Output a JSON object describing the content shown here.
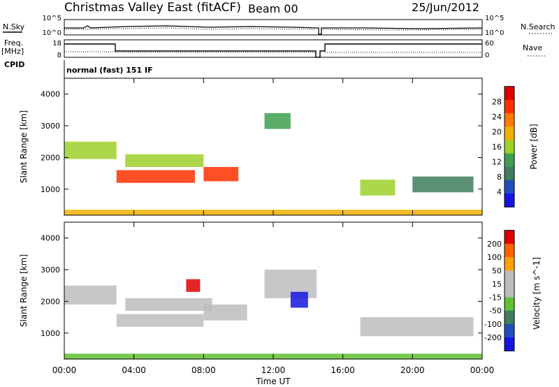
{
  "header": {
    "title": "Christmas Valley East (fitACF)",
    "beam": "Beam 00",
    "date": "25/Jun/2012"
  },
  "summary_panels": {
    "nsky_label": "N.Sky",
    "nsearch_label": "N.Search",
    "noise_ticks": [
      "10^5",
      "10^0"
    ],
    "freq_label": "Freq.",
    "freq_unit": "[MHz]",
    "freq_ticks": [
      "18",
      "8"
    ],
    "nave_label": "Nave",
    "nave_ticks": [
      "60",
      "0"
    ],
    "cpid_label": "CPID",
    "cpid_value": "normal (fast) 151 IF"
  },
  "colors": {
    "power_scale": [
      "#1515e0",
      "#1f4fbf",
      "#3f7d5c",
      "#3f9f4f",
      "#9fd02a",
      "#f2b000",
      "#ff7a00",
      "#ff3000",
      "#e00000"
    ],
    "velocity_scale": [
      "#1515e0",
      "#1f4fbf",
      "#3f7d5c",
      "#5fc030",
      "#bdbdbd",
      "#bdbdbd",
      "#ffa000",
      "#ff6000",
      "#e00000"
    ]
  },
  "chart_data": [
    {
      "type": "heatmap",
      "name": "power",
      "ylabel": "Slant Range [km]",
      "xlabel": "Time UT",
      "x_ticks": [
        "00:00",
        "04:00",
        "08:00",
        "12:00",
        "16:00",
        "20:00",
        "00:00"
      ],
      "y_ticks": [
        "1000",
        "2000",
        "3000",
        "4000"
      ],
      "xlim_hours": [
        0,
        24
      ],
      "ylim_km": [
        180,
        4500
      ],
      "colorbar": {
        "label": "Power [dB]",
        "ticks": [
          "28",
          "24",
          "20",
          "16",
          "12",
          "8",
          "4"
        ],
        "range": [
          0,
          30
        ]
      },
      "features": [
        {
          "t0": 0.0,
          "t1": 3.0,
          "r0": 1950,
          "r1": 2500,
          "level": 16
        },
        {
          "t0": 3.0,
          "t1": 7.5,
          "r0": 1200,
          "r1": 1600,
          "level": 26
        },
        {
          "t0": 3.5,
          "t1": 8.0,
          "r0": 1700,
          "r1": 2100,
          "level": 14
        },
        {
          "t0": 8.0,
          "t1": 10.0,
          "r0": 1250,
          "r1": 1700,
          "level": 24
        },
        {
          "t0": 11.5,
          "t1": 13.0,
          "r0": 2900,
          "r1": 3400,
          "level": 12
        },
        {
          "t0": 17.0,
          "t1": 19.0,
          "r0": 800,
          "r1": 1300,
          "level": 14
        },
        {
          "t0": 20.0,
          "t1": 23.5,
          "r0": 900,
          "r1": 1400,
          "level": 10
        },
        {
          "t0": 0.0,
          "t1": 24.0,
          "r0": 180,
          "r1": 350,
          "level": 20
        }
      ]
    },
    {
      "type": "heatmap",
      "name": "velocity",
      "ylabel": "Slant Range [km]",
      "xlabel": "Time UT",
      "x_ticks": [
        "00:00",
        "04:00",
        "08:00",
        "12:00",
        "16:00",
        "20:00",
        "00:00"
      ],
      "y_ticks": [
        "1000",
        "2000",
        "3000",
        "4000"
      ],
      "xlim_hours": [
        0,
        24
      ],
      "ylim_km": [
        180,
        4500
      ],
      "colorbar": {
        "label": "Velocity [m s^-1]",
        "ticks": [
          "200",
          "100",
          "50",
          "15",
          "-15",
          "-50",
          "-100",
          "-200"
        ],
        "range": [
          -250,
          250
        ]
      },
      "features": [
        {
          "t0": 0.0,
          "t1": 3.0,
          "r0": 1900,
          "r1": 2500,
          "level": 0
        },
        {
          "t0": 3.0,
          "t1": 8.0,
          "r0": 1200,
          "r1": 1600,
          "level": 0
        },
        {
          "t0": 3.5,
          "t1": 8.5,
          "r0": 1700,
          "r1": 2100,
          "level": 40
        },
        {
          "t0": 7.0,
          "t1": 7.8,
          "r0": 2300,
          "r1": 2700,
          "level": 220
        },
        {
          "t0": 8.0,
          "t1": 10.5,
          "r0": 1400,
          "r1": 1900,
          "level": 40
        },
        {
          "t0": 11.5,
          "t1": 14.5,
          "r0": 2100,
          "r1": 3000,
          "level": 0
        },
        {
          "t0": 13.0,
          "t1": 14.0,
          "r0": 1800,
          "r1": 2300,
          "level": -200
        },
        {
          "t0": 17.0,
          "t1": 23.5,
          "r0": 900,
          "r1": 1500,
          "level": 0
        },
        {
          "t0": 0.0,
          "t1": 24.0,
          "r0": 180,
          "r1": 350,
          "level": -60
        }
      ]
    }
  ]
}
